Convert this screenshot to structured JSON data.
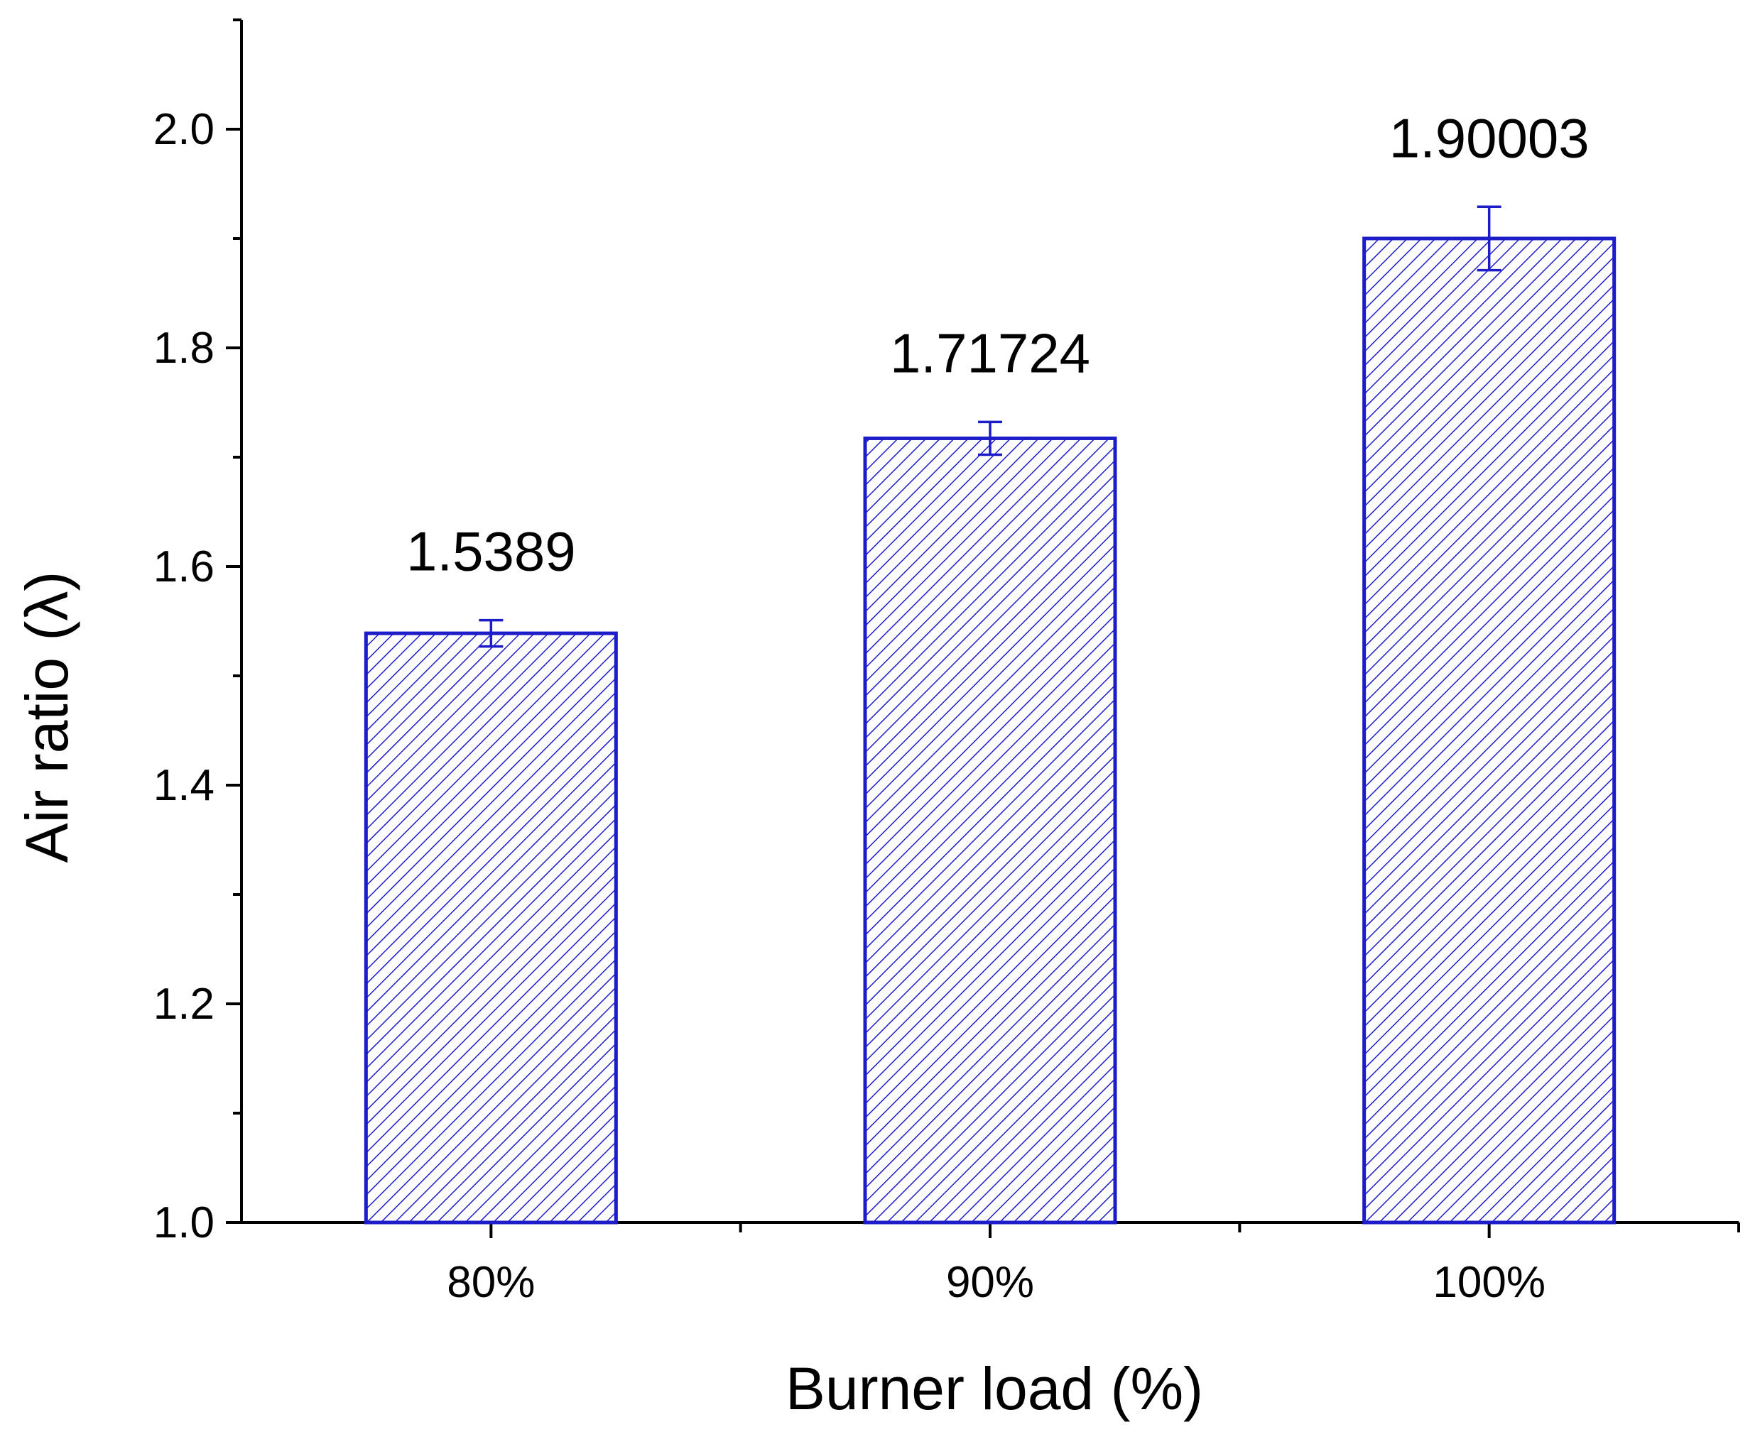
{
  "chart_data": {
    "type": "bar",
    "xlabel": "Burner load (%)",
    "ylabel": "Air ratio (λ)",
    "categories": [
      "80%",
      "90%",
      "100%"
    ],
    "values": [
      1.5389,
      1.71724,
      1.90003
    ],
    "value_labels": [
      "1.5389",
      "1.71724",
      "1.90003"
    ],
    "error": [
      0.012,
      0.015,
      0.029
    ],
    "ylim": [
      1.0,
      2.1
    ],
    "yticks": [
      1.0,
      1.2,
      1.4,
      1.6,
      1.8,
      2.0
    ],
    "ytick_labels": [
      "1.0",
      "1.2",
      "1.4",
      "1.6",
      "1.8",
      "2.0"
    ],
    "yminor_ticks": [
      1.1,
      1.3,
      1.5,
      1.7,
      1.9,
      2.1
    ],
    "grid": false,
    "bar_style": "hatched",
    "colors": {
      "bar": "#1c1cc8",
      "hatch": "#1c1cc8",
      "axis": "#000000"
    }
  }
}
